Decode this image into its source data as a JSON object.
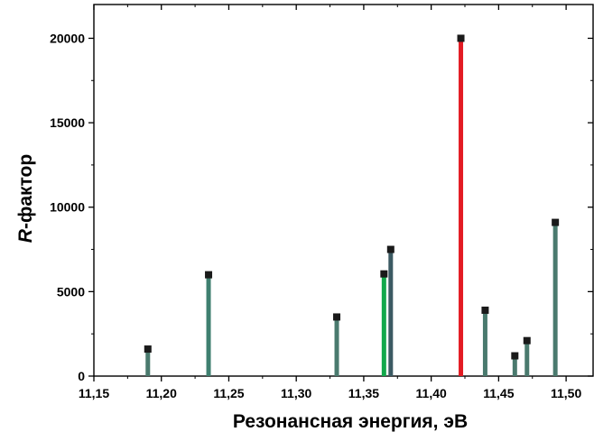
{
  "chart_data": {
    "type": "bar",
    "xlabel": "Резонансная энергия, эВ",
    "ylabel": {
      "italic": "R",
      "rest": "-фактор"
    },
    "xlim": [
      11.15,
      11.52
    ],
    "ylim": [
      0,
      22000
    ],
    "xticks": [
      {
        "value": 11.15,
        "label": "11,15"
      },
      {
        "value": 11.2,
        "label": "11,20"
      },
      {
        "value": 11.25,
        "label": "11,25"
      },
      {
        "value": 11.3,
        "label": "11,30"
      },
      {
        "value": 11.35,
        "label": "11,35"
      },
      {
        "value": 11.4,
        "label": "11,40"
      },
      {
        "value": 11.45,
        "label": "11,45"
      },
      {
        "value": 11.5,
        "label": "11,50"
      }
    ],
    "yticks": [
      {
        "value": 0,
        "label": "0"
      },
      {
        "value": 5000,
        "label": "5000"
      },
      {
        "value": 10000,
        "label": "10000"
      },
      {
        "value": 15000,
        "label": "15000"
      },
      {
        "value": 20000,
        "label": "20000"
      }
    ],
    "bars": [
      {
        "x": 11.19,
        "y": 1600,
        "color": "#4a7a6e"
      },
      {
        "x": 11.235,
        "y": 6000,
        "color": "#3f8070"
      },
      {
        "x": 11.33,
        "y": 3500,
        "color": "#4a7a6e"
      },
      {
        "x": 11.365,
        "y": 6050,
        "color": "#12a84a"
      },
      {
        "x": 11.37,
        "y": 7500,
        "color": "#3b5a63"
      },
      {
        "x": 11.422,
        "y": 20000,
        "color": "#e31b23"
      },
      {
        "x": 11.44,
        "y": 3900,
        "color": "#4a7a6e"
      },
      {
        "x": 11.462,
        "y": 1200,
        "color": "#4a7a6e"
      },
      {
        "x": 11.471,
        "y": 2100,
        "color": "#4a7a6e"
      },
      {
        "x": 11.492,
        "y": 9100,
        "color": "#4a7a6e"
      }
    ],
    "marker_color": "#1a1a1a",
    "grid": false
  }
}
